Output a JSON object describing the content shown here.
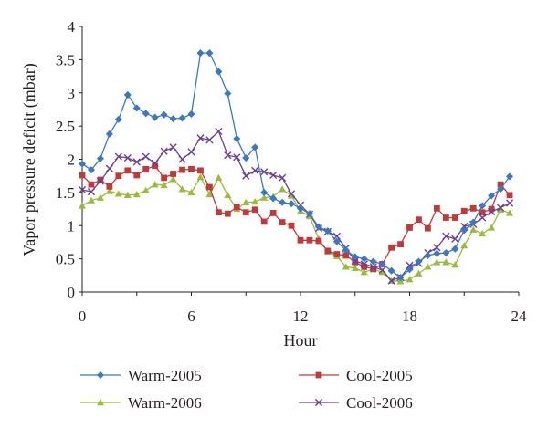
{
  "chart_data": {
    "type": "line",
    "xlabel": "Hour",
    "ylabel": "Vapor pressure deficit (mbar)",
    "xlim": [
      0,
      24
    ],
    "ylim": [
      0,
      4
    ],
    "x_ticks": [
      "0",
      "6",
      "12",
      "18",
      "24"
    ],
    "y_ticks": [
      "0",
      "0.5",
      "1",
      "1.5",
      "2",
      "2.5",
      "3",
      "3.5",
      "4"
    ],
    "grid": false,
    "legend_position": "bottom",
    "x": [
      0,
      0.5,
      1,
      1.5,
      2,
      2.5,
      3,
      3.5,
      4,
      4.5,
      5,
      5.5,
      6,
      6.5,
      7,
      7.5,
      8,
      8.5,
      9,
      9.5,
      10,
      10.5,
      11,
      11.5,
      12,
      12.5,
      13,
      13.5,
      14,
      14.5,
      15,
      15.5,
      16,
      16.5,
      17,
      17.5,
      18,
      18.5,
      19,
      19.5,
      20,
      20.5,
      21,
      21.5,
      22,
      22.5,
      23,
      23.5
    ],
    "series": [
      {
        "name": "Warm-2005",
        "color": "#3a78c0",
        "marker": "diamond",
        "values": [
          1.93,
          1.84,
          2.01,
          2.38,
          2.6,
          2.97,
          2.77,
          2.69,
          2.63,
          2.67,
          2.61,
          2.62,
          2.68,
          3.6,
          3.6,
          3.32,
          2.99,
          2.31,
          2.02,
          2.18,
          1.5,
          1.41,
          1.35,
          1.33,
          1.26,
          1.18,
          0.98,
          0.92,
          0.76,
          0.63,
          0.53,
          0.5,
          0.46,
          0.42,
          0.32,
          0.22,
          0.34,
          0.46,
          0.55,
          0.58,
          0.59,
          0.65,
          0.93,
          1.05,
          1.3,
          1.45,
          1.55,
          1.74
        ]
      },
      {
        "name": "Cool-2005",
        "color": "#c0393b",
        "marker": "square",
        "values": [
          1.76,
          1.62,
          1.69,
          1.59,
          1.75,
          1.83,
          1.76,
          1.85,
          1.9,
          1.72,
          1.78,
          1.84,
          1.85,
          1.83,
          1.58,
          1.2,
          1.18,
          1.28,
          1.2,
          1.24,
          1.06,
          1.19,
          1.05,
          1.0,
          0.78,
          0.78,
          0.77,
          0.62,
          0.57,
          0.55,
          0.45,
          0.38,
          0.35,
          0.42,
          0.67,
          0.72,
          0.97,
          1.09,
          0.96,
          1.26,
          1.12,
          1.12,
          1.22,
          1.26,
          1.2,
          1.25,
          1.62,
          1.46
        ]
      },
      {
        "name": "Warm-2006",
        "color": "#9bbb3a",
        "marker": "triangle",
        "values": [
          1.3,
          1.38,
          1.42,
          1.52,
          1.48,
          1.46,
          1.47,
          1.53,
          1.62,
          1.61,
          1.7,
          1.55,
          1.5,
          1.73,
          1.47,
          1.72,
          1.46,
          1.25,
          1.35,
          1.36,
          1.42,
          1.44,
          1.55,
          1.45,
          1.22,
          1.14,
          0.8,
          0.61,
          0.54,
          0.38,
          0.36,
          0.3,
          0.34,
          0.3,
          0.17,
          0.16,
          0.19,
          0.28,
          0.38,
          0.45,
          0.45,
          0.41,
          0.7,
          0.94,
          0.88,
          0.97,
          1.24,
          1.19
        ]
      },
      {
        "name": "Cool-2006",
        "color": "#6a3f94",
        "marker": "x",
        "values": [
          1.54,
          1.51,
          1.67,
          1.86,
          2.04,
          2.02,
          1.96,
          2.04,
          1.94,
          2.12,
          2.18,
          2.0,
          2.11,
          2.32,
          2.29,
          2.42,
          2.06,
          2.03,
          1.75,
          1.83,
          1.81,
          1.76,
          1.72,
          1.48,
          1.31,
          1.17,
          0.96,
          0.91,
          0.84,
          0.66,
          0.47,
          0.42,
          0.38,
          0.33,
          0.17,
          0.22,
          0.4,
          0.43,
          0.59,
          0.67,
          0.84,
          0.8,
          0.99,
          1.02,
          1.12,
          1.21,
          1.27,
          1.34
        ]
      }
    ]
  }
}
